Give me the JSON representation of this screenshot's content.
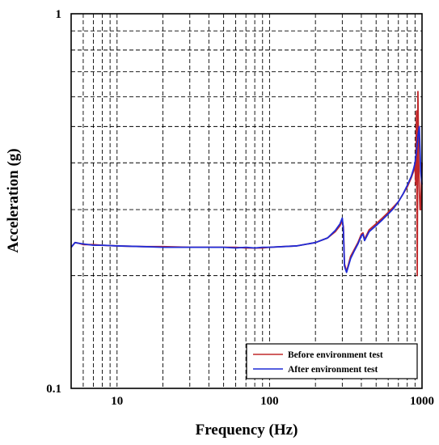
{
  "chart_data": {
    "type": "line",
    "xlabel": "Frequency (Hz)",
    "ylabel": "Acceleration (g)",
    "xscale": "log",
    "yscale": "log",
    "xlim": [
      5,
      1000
    ],
    "ylim": [
      0.1,
      1
    ],
    "grid": true,
    "legend_position": "bottom-right",
    "x_ticks": [
      {
        "value": 10,
        "label": "10"
      },
      {
        "value": 100,
        "label": "100"
      },
      {
        "value": 1000,
        "label": "1000"
      }
    ],
    "y_ticks": [
      {
        "value": 0.1,
        "label": "0.1"
      },
      {
        "value": 1,
        "label": "1"
      }
    ],
    "series": [
      {
        "name": "Before environment test",
        "color": "#c0282a",
        "x": [
          5,
          5.3,
          5.6,
          6,
          7,
          8,
          10,
          15,
          20,
          30,
          40,
          50,
          60,
          70,
          80,
          90,
          100,
          150,
          200,
          240,
          270,
          290,
          300,
          305,
          310,
          320,
          330,
          340,
          360,
          380,
          400,
          410,
          420,
          450,
          500,
          550,
          600,
          650,
          700,
          750,
          800,
          850,
          880,
          900,
          910,
          920,
          930,
          940,
          950,
          960,
          970,
          980,
          990,
          1000
        ],
        "y": [
          0.238,
          0.245,
          0.244,
          0.242,
          0.242,
          0.241,
          0.24,
          0.239,
          0.239,
          0.238,
          0.238,
          0.238,
          0.238,
          0.237,
          0.237,
          0.237,
          0.238,
          0.24,
          0.245,
          0.252,
          0.262,
          0.272,
          0.28,
          0.27,
          0.215,
          0.205,
          0.215,
          0.225,
          0.235,
          0.245,
          0.258,
          0.26,
          0.25,
          0.265,
          0.275,
          0.285,
          0.295,
          0.305,
          0.315,
          0.33,
          0.345,
          0.365,
          0.38,
          0.395,
          0.35,
          0.55,
          0.2,
          0.62,
          0.42,
          0.34,
          0.3,
          0.3,
          0.35,
          0.4
        ]
      },
      {
        "name": "After environment test",
        "color": "#1f2bd6",
        "x": [
          5,
          5.3,
          5.6,
          6,
          7,
          8,
          10,
          15,
          20,
          30,
          35,
          40,
          50,
          60,
          70,
          80,
          90,
          100,
          150,
          200,
          240,
          270,
          290,
          300,
          305,
          310,
          320,
          330,
          340,
          360,
          380,
          400,
          410,
          420,
          450,
          500,
          550,
          600,
          650,
          700,
          750,
          800,
          850,
          880,
          900,
          920,
          940,
          960,
          980,
          1000
        ],
        "y": [
          0.238,
          0.245,
          0.244,
          0.243,
          0.241,
          0.241,
          0.24,
          0.239,
          0.238,
          0.238,
          0.238,
          0.238,
          0.238,
          0.237,
          0.238,
          0.237,
          0.238,
          0.238,
          0.24,
          0.245,
          0.252,
          0.264,
          0.275,
          0.285,
          0.265,
          0.212,
          0.204,
          0.213,
          0.222,
          0.233,
          0.243,
          0.255,
          0.258,
          0.248,
          0.262,
          0.272,
          0.282,
          0.292,
          0.302,
          0.315,
          0.33,
          0.348,
          0.368,
          0.385,
          0.4,
          0.43,
          0.47,
          0.5,
          0.38,
          0.35
        ]
      }
    ]
  }
}
